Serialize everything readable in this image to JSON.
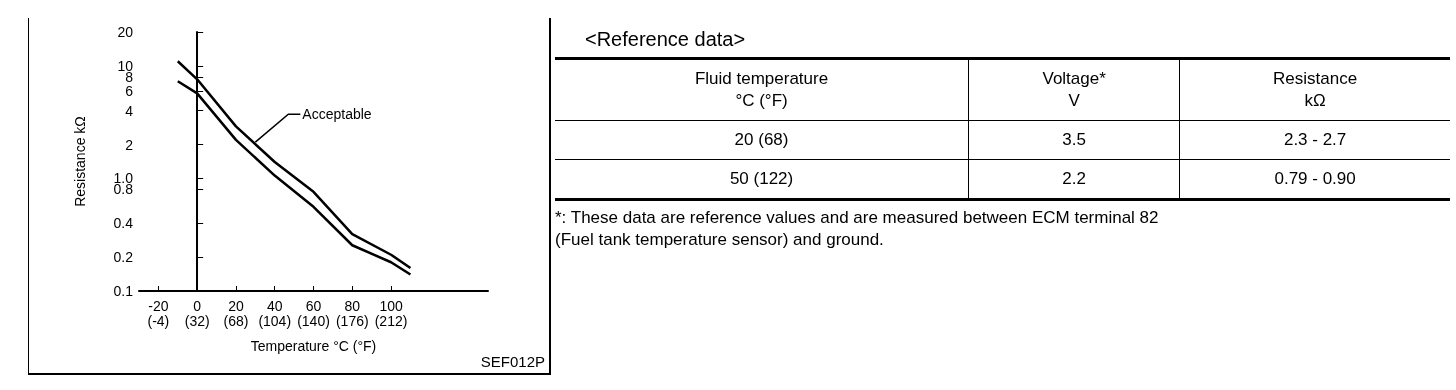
{
  "chart_data": [
    {
      "type": "area",
      "xlabel": "Temperature °C (°F)",
      "ylabel": "Resistance kΩ",
      "log": "y",
      "x": [
        -10,
        0,
        20,
        40,
        60,
        80,
        100,
        110
      ],
      "series": [
        {
          "type": "line",
          "color": "#000000",
          "values": [
            11,
            7.6,
            2.9,
            1.4,
            0.76,
            0.32,
            0.21,
            0.16
          ]
        },
        {
          "type": "line",
          "color": "#000000",
          "values": [
            7.3,
            5.7,
            2.2,
            1.06,
            0.56,
            0.255,
            0.18,
            0.14
          ]
        }
      ],
      "xlim": [
        -30,
        150
      ],
      "xticks": [
        -20,
        0,
        20,
        40,
        60,
        80,
        100
      ],
      "x2lim": [
        -22,
        302
      ],
      "x2ticks": [
        {
          "value": -4,
          "label": "(-4)"
        },
        {
          "value": 32,
          "label": "(32)"
        },
        {
          "value": 68,
          "label": "(68)"
        },
        {
          "value": 104,
          "label": "(104)"
        },
        {
          "value": 140,
          "label": "(140)"
        },
        {
          "value": 176,
          "label": "(176)"
        },
        {
          "value": 212,
          "label": "(212)"
        }
      ],
      "ylim": [
        0.1,
        20
      ],
      "yticks": [
        0.1,
        0.2,
        0.4,
        {
          "value": 0.8,
          "label": "0.8"
        },
        {
          "value": 1,
          "label": "1.0"
        },
        2,
        4,
        6,
        8,
        10,
        20
      ],
      "annotations": [
        {
          "text": "Acceptable",
          "x": 30,
          "y": 2.1
        },
        "SEF012P"
      ]
    },
    {
      "type": "other",
      "title": "<Reference data>",
      "categories": [
        "Fluid temperature\n°C (°F)",
        "Voltage*\nV",
        "Resistance\nkΩ"
      ],
      "cell_labels": [
        [
          "20 (68)",
          "3.5",
          "2.3 - 2.7"
        ],
        [
          "50 (122)",
          "2.2",
          "0.79 - 0.90"
        ]
      ],
      "annotations": [
        "*: These data are reference values and are measured between ECM terminal 82\n(Fuel tank temperature sensor) and ground."
      ]
    }
  ]
}
